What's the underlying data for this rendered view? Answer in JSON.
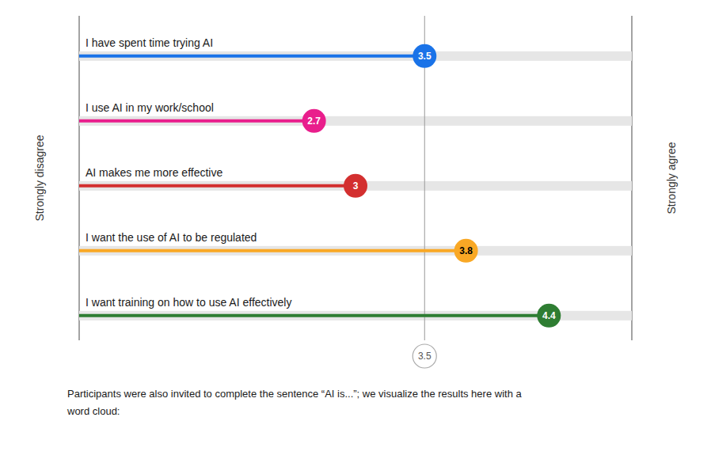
{
  "chart_data": {
    "type": "lollipop",
    "orientation": "horizontal",
    "categories": [
      "I have spent time trying AI",
      "I use AI in my work/school",
      "AI makes me more effective",
      "I want the use of AI to be regulated",
      "I want training on how to use AI effectively"
    ],
    "values": [
      3.5,
      2.7,
      3.0,
      3.8,
      4.4
    ],
    "colors": [
      "#1A73E8",
      "#E91E8C",
      "#D32F2F",
      "#F9A825",
      "#2E7D32"
    ],
    "xlim": [
      1,
      5
    ],
    "reference_line": 3.5,
    "data_labels": true,
    "tick_labels": false,
    "grid": false,
    "annotations": [
      "Strongly disagree",
      "Strongly agree"
    ],
    "footer": [
      "Participants were also invited to complete the sentence “AI is...”; we visualize the results here with a",
      "word cloud:"
    ]
  }
}
